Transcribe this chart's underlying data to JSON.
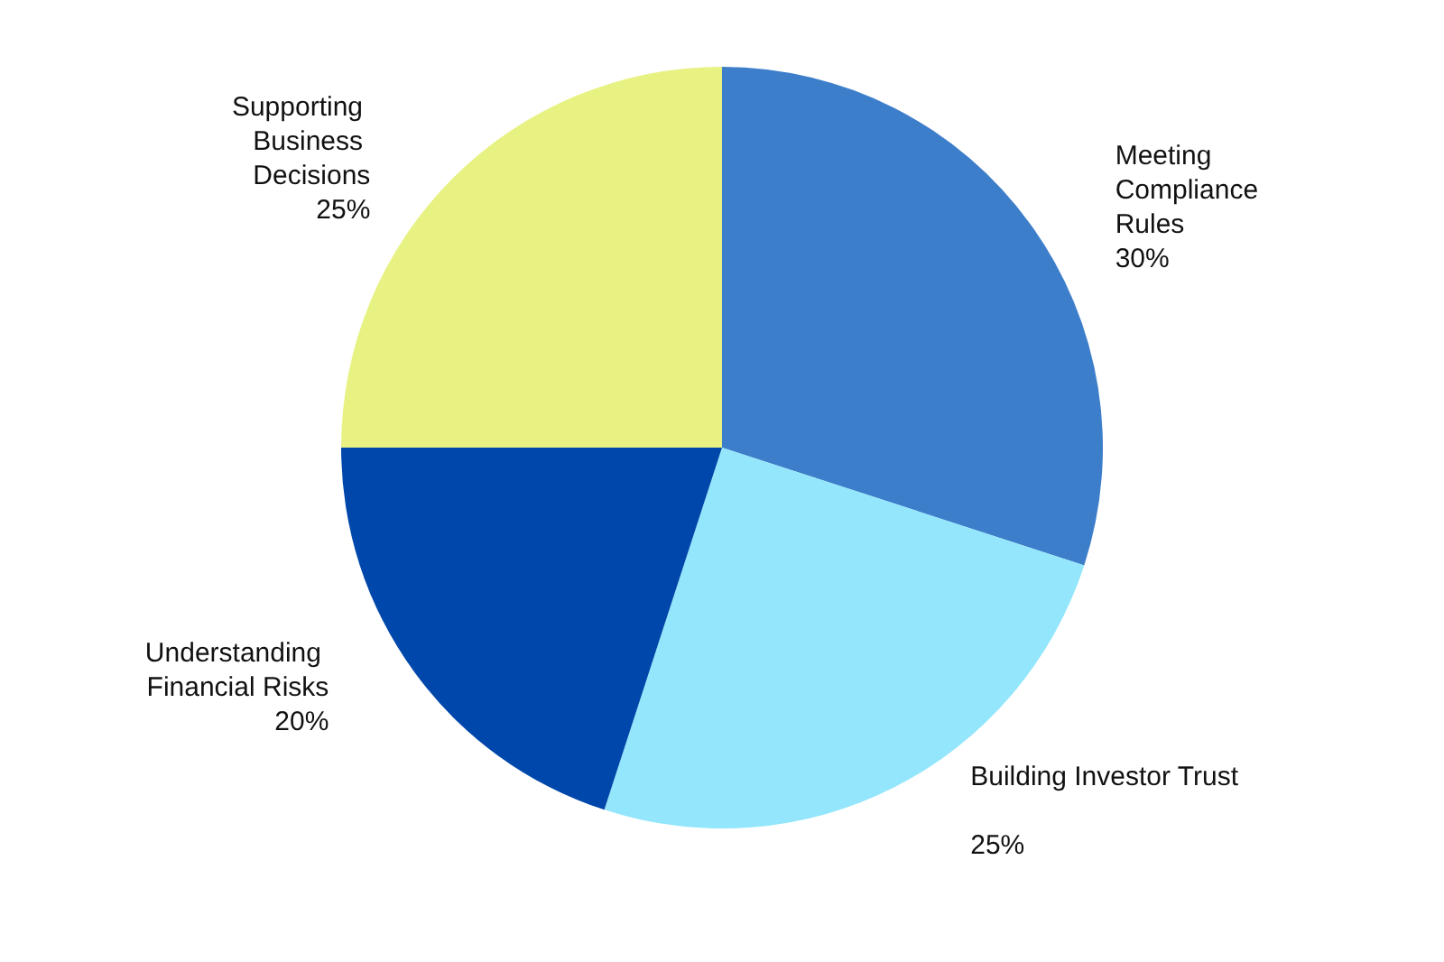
{
  "chart_data": {
    "type": "pie",
    "categories": [
      "Meeting Compliance Rules",
      "Building Investor Trust",
      "Understanding Financial Risks",
      "Supporting Business Decisions"
    ],
    "values": [
      30,
      25,
      20,
      25
    ],
    "value_labels": [
      "30%",
      "25%",
      "20%",
      "25%"
    ],
    "colors": [
      "#3d7ecb",
      "#93e6fb",
      "#0047ab",
      "#e8f283"
    ],
    "legend": false
  }
}
